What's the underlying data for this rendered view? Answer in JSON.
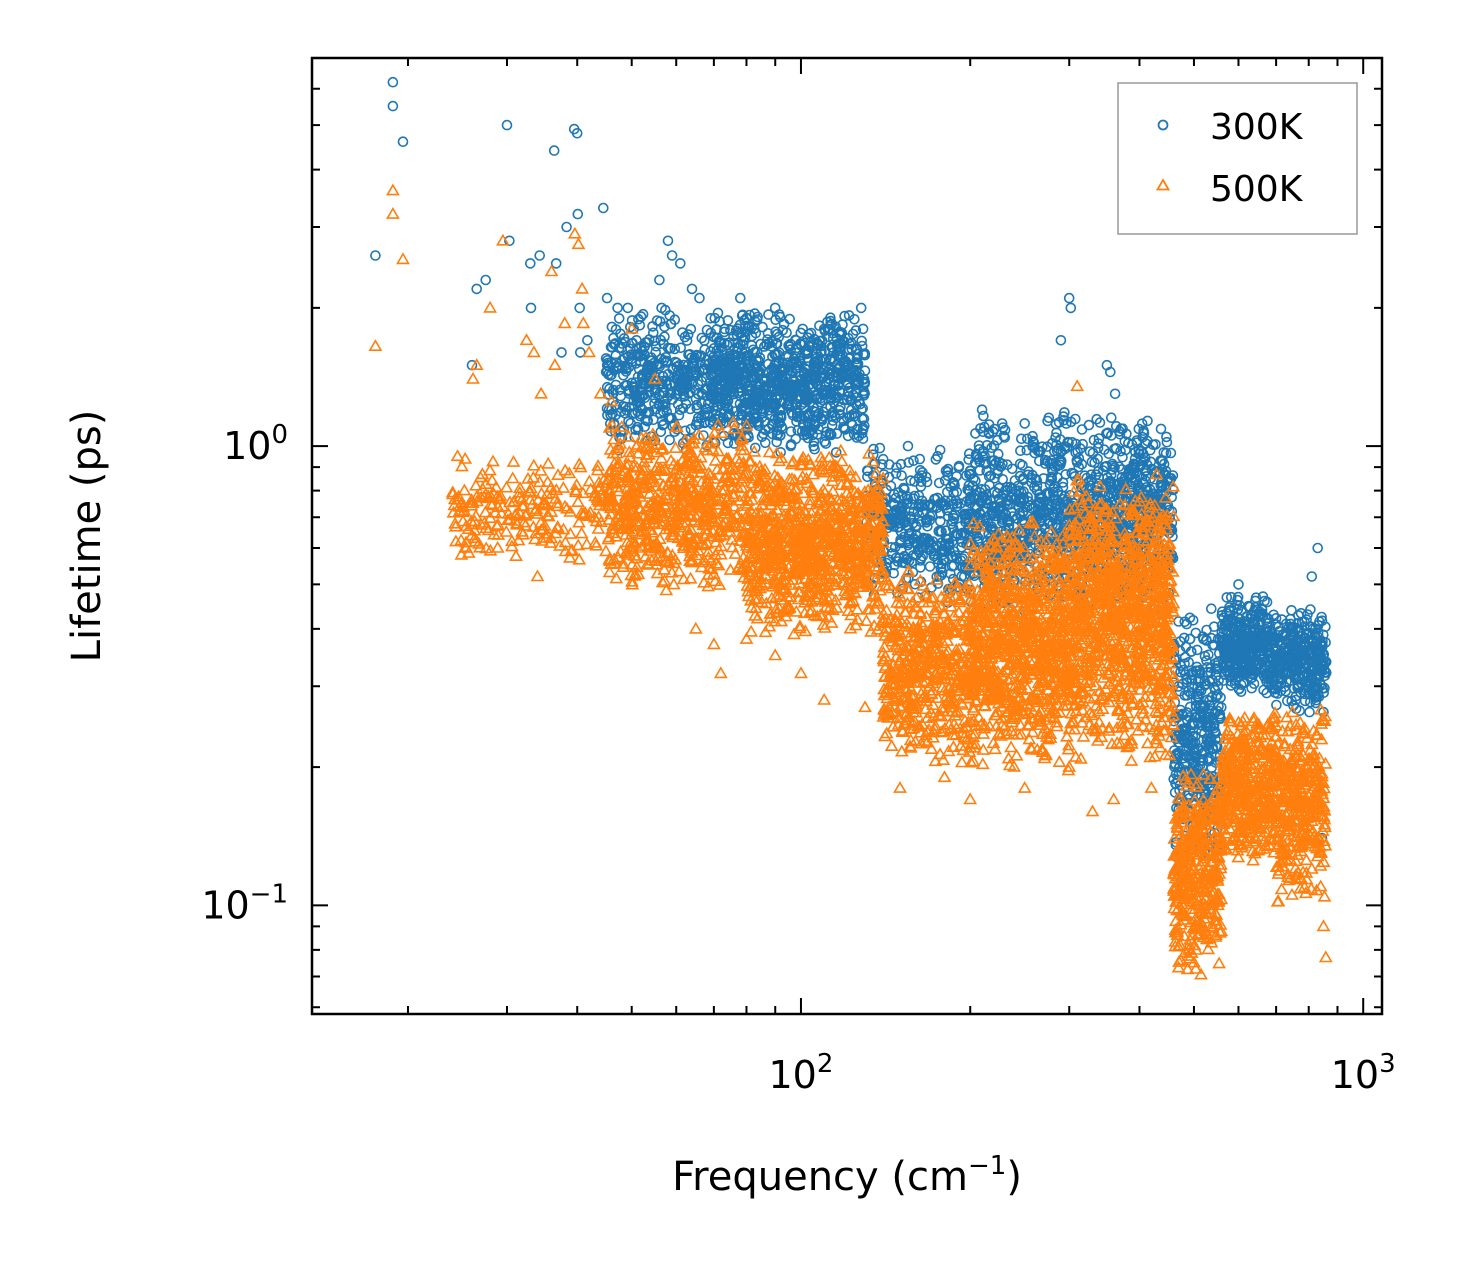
{
  "chart_data": {
    "type": "scatter",
    "xscale": "log",
    "yscale": "log",
    "xlabel": "Frequency (cm",
    "xlabel_sup": "−1",
    "xlabel_suffix": ")",
    "ylabel": "Lifetime (ps)",
    "xlim": [
      13.5,
      1080
    ],
    "ylim": [
      0.058,
      7.0
    ],
    "xticks": [
      {
        "value": 100,
        "base": "10",
        "exp": "2"
      },
      {
        "value": 1000,
        "base": "10",
        "exp": "3"
      }
    ],
    "yticks": [
      {
        "value": 0.1,
        "base": "10",
        "exp": "−1"
      },
      {
        "value": 1,
        "base": "10",
        "exp": "0"
      }
    ],
    "legend": {
      "position": "upper right"
    },
    "series": [
      {
        "name": "300K",
        "marker": "circle",
        "color": "#1f77b4",
        "points": [
          [
            17.5,
            2.6
          ],
          [
            18.8,
            6.2
          ],
          [
            18.8,
            5.5
          ],
          [
            19.6,
            4.6
          ],
          [
            26.0,
            1.5
          ],
          [
            26.5,
            2.2
          ],
          [
            27.5,
            2.3
          ],
          [
            30.0,
            5.0
          ],
          [
            30.3,
            2.8
          ],
          [
            33.0,
            2.5
          ],
          [
            33.1,
            2.0
          ],
          [
            34.3,
            2.6
          ],
          [
            36.4,
            4.4
          ],
          [
            36.7,
            2.5
          ],
          [
            37.5,
            1.6
          ],
          [
            38.3,
            3.0
          ],
          [
            39.5,
            4.9
          ],
          [
            40.0,
            4.8
          ],
          [
            40.1,
            3.2
          ],
          [
            40.4,
            2.0
          ],
          [
            40.5,
            1.6
          ],
          [
            41.7,
            1.7
          ],
          [
            44.5,
            3.3
          ],
          [
            45.2,
            2.1
          ],
          [
            47.2,
            2.0
          ],
          [
            49.2,
            2.0
          ],
          [
            51.0,
            1.7
          ],
          [
            53.6,
            1.5
          ],
          [
            56.0,
            2.3
          ],
          [
            56.5,
            2.0
          ],
          [
            58.0,
            2.8
          ],
          [
            59.0,
            2.6
          ],
          [
            61.0,
            2.5
          ],
          [
            64.0,
            2.2
          ],
          [
            66.0,
            2.1
          ],
          [
            78.0,
            2.1
          ],
          [
            80.0,
            1.9
          ],
          [
            90.0,
            2.0
          ],
          [
            98.0,
            1.7
          ],
          [
            110.0,
            1.8
          ],
          [
            128.0,
            2.0
          ],
          [
            129.0,
            1.8
          ],
          [
            155.0,
            1.0
          ],
          [
            175.0,
            0.95
          ],
          [
            210.0,
            1.2
          ],
          [
            212.0,
            1.1
          ],
          [
            290.0,
            1.7
          ],
          [
            300.0,
            2.1
          ],
          [
            302.0,
            2.0
          ],
          [
            350.0,
            1.5
          ],
          [
            355.0,
            1.45
          ],
          [
            362.0,
            1.3
          ],
          [
            440.0,
            0.55
          ],
          [
            520.0,
            0.38
          ],
          [
            600.0,
            0.5
          ],
          [
            640.0,
            0.4
          ],
          [
            810.0,
            0.52
          ],
          [
            830.0,
            0.6
          ],
          [
            845.0,
            0.14
          ]
        ]
      },
      {
        "name": "500K",
        "marker": "triangle",
        "color": "#ff7f0e",
        "points": [
          [
            17.5,
            1.65
          ],
          [
            18.8,
            3.6
          ],
          [
            18.8,
            3.2
          ],
          [
            19.6,
            2.55
          ],
          [
            24.5,
            0.95
          ],
          [
            25.2,
            0.8
          ],
          [
            26.1,
            1.4
          ],
          [
            26.5,
            1.5
          ],
          [
            28.0,
            2.0
          ],
          [
            29.5,
            2.8
          ],
          [
            32.5,
            1.7
          ],
          [
            33.5,
            1.6
          ],
          [
            34.0,
            0.52
          ],
          [
            34.5,
            1.3
          ],
          [
            36.0,
            2.4
          ],
          [
            36.5,
            1.5
          ],
          [
            38.0,
            1.85
          ],
          [
            39.6,
            2.9
          ],
          [
            40.2,
            2.75
          ],
          [
            40.8,
            2.2
          ],
          [
            41.0,
            1.85
          ],
          [
            42.0,
            1.6
          ],
          [
            44.0,
            1.3
          ],
          [
            46.0,
            1.25
          ],
          [
            48.0,
            1.1
          ],
          [
            50.0,
            1.8
          ],
          [
            52.0,
            0.6
          ],
          [
            55.0,
            1.4
          ],
          [
            60.0,
            1.1
          ],
          [
            65.0,
            0.4
          ],
          [
            70.0,
            0.37
          ],
          [
            72.0,
            0.32
          ],
          [
            80.0,
            0.38
          ],
          [
            90.0,
            0.35
          ],
          [
            100.0,
            0.32
          ],
          [
            110.0,
            0.28
          ],
          [
            130.0,
            0.27
          ],
          [
            150.0,
            0.18
          ],
          [
            180.0,
            0.19
          ],
          [
            200.0,
            0.17
          ],
          [
            250.0,
            0.18
          ],
          [
            300.0,
            0.2
          ],
          [
            310.0,
            1.35
          ],
          [
            330.0,
            0.16
          ],
          [
            360.0,
            0.17
          ],
          [
            420.0,
            0.18
          ],
          [
            500.0,
            0.075
          ],
          [
            510.0,
            0.09
          ],
          [
            560.0,
            0.15
          ],
          [
            600.0,
            0.25
          ],
          [
            700.0,
            0.2
          ],
          [
            780.0,
            0.19
          ],
          [
            810.0,
            0.12
          ],
          [
            850.0,
            0.09
          ],
          [
            858.0,
            0.077
          ]
        ]
      }
    ],
    "clusters": [
      {
        "series": 0,
        "x": [
          45,
          70
        ],
        "y": [
          0.95,
          2.0
        ],
        "count": 420
      },
      {
        "series": 0,
        "x": [
          70,
          130
        ],
        "y": [
          0.95,
          2.0
        ],
        "count": 900
      },
      {
        "series": 0,
        "x": [
          130,
          200
        ],
        "y": [
          0.45,
          1.0
        ],
        "count": 400
      },
      {
        "series": 0,
        "x": [
          200,
          460
        ],
        "y": [
          0.42,
          1.2
        ],
        "count": 1200
      },
      {
        "series": 0,
        "x": [
          460,
          560
        ],
        "y": [
          0.11,
          0.45
        ],
        "count": 400
      },
      {
        "series": 0,
        "x": [
          560,
          680
        ],
        "y": [
          0.28,
          0.48
        ],
        "count": 350
      },
      {
        "series": 0,
        "x": [
          680,
          860
        ],
        "y": [
          0.26,
          0.45
        ],
        "count": 350
      },
      {
        "series": 1,
        "x": [
          24,
          45
        ],
        "y": [
          0.55,
          0.95
        ],
        "count": 220
      },
      {
        "series": 1,
        "x": [
          45,
          80
        ],
        "y": [
          0.48,
          1.15
        ],
        "count": 650
      },
      {
        "series": 1,
        "x": [
          80,
          140
        ],
        "y": [
          0.38,
          1.0
        ],
        "count": 900
      },
      {
        "series": 1,
        "x": [
          140,
          200
        ],
        "y": [
          0.2,
          0.55
        ],
        "count": 500
      },
      {
        "series": 1,
        "x": [
          200,
          300
        ],
        "y": [
          0.19,
          0.7
        ],
        "count": 900
      },
      {
        "series": 1,
        "x": [
          300,
          460
        ],
        "y": [
          0.2,
          0.9
        ],
        "count": 1000
      },
      {
        "series": 1,
        "x": [
          460,
          560
        ],
        "y": [
          0.07,
          0.2
        ],
        "count": 400
      },
      {
        "series": 1,
        "x": [
          560,
          700
        ],
        "y": [
          0.12,
          0.28
        ],
        "count": 400
      },
      {
        "series": 1,
        "x": [
          700,
          860
        ],
        "y": [
          0.1,
          0.28
        ],
        "count": 350
      }
    ]
  }
}
